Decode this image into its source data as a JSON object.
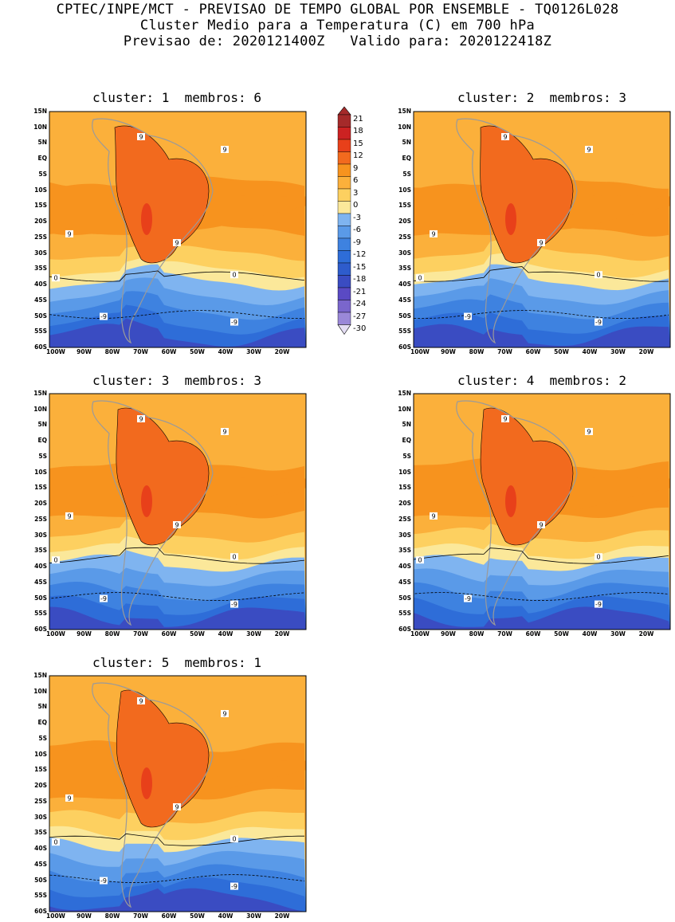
{
  "header": {
    "line1": "CPTEC/INPE/MCT - PREVISAO DE TEMPO GLOBAL POR ENSEMBLE - TQ0126L028",
    "line2": "Cluster Medio para a Temperatura (C) em 700 hPa",
    "line3": "Previsao de: 2020121400Z   Valido para: 2020122418Z"
  },
  "panels": [
    {
      "title": "cluster: 1  membros: 6"
    },
    {
      "title": "cluster: 2  membros: 3"
    },
    {
      "title": "cluster: 3  membros: 3"
    },
    {
      "title": "cluster: 4  membros: 2"
    },
    {
      "title": "cluster: 5  membros: 1"
    }
  ],
  "axes": {
    "lat_labels": [
      "15N",
      "10N",
      "5N",
      "EQ",
      "5S",
      "10S",
      "15S",
      "20S",
      "25S",
      "30S",
      "35S",
      "40S",
      "45S",
      "50S",
      "55S",
      "60S"
    ],
    "lon_labels": [
      "100W",
      "90W",
      "80W",
      "70W",
      "60W",
      "50W",
      "40W",
      "30W",
      "20W"
    ]
  },
  "colorbar": {
    "labels": [
      "21",
      "18",
      "15",
      "12",
      "9",
      "6",
      "3",
      "0",
      "-3",
      "-6",
      "-9",
      "-12",
      "-15",
      "-18",
      "-21",
      "-24",
      "-27",
      "-30"
    ],
    "colors": [
      "#a52a2a",
      "#cc2222",
      "#e8401a",
      "#f26a1e",
      "#f7931e",
      "#fbb03b",
      "#fdd060",
      "#fbe89a",
      "#7fb4f0",
      "#5a9ae8",
      "#3e82e0",
      "#2e6dd8",
      "#2e5ccc",
      "#3a4cc2",
      "#5a4ac4",
      "#7a66cc",
      "#9a88d8",
      "#c0b4e6",
      "#e4ddf3"
    ]
  },
  "contour_labels": {
    "warm": "9",
    "zero": "0",
    "cold": "-9"
  }
}
